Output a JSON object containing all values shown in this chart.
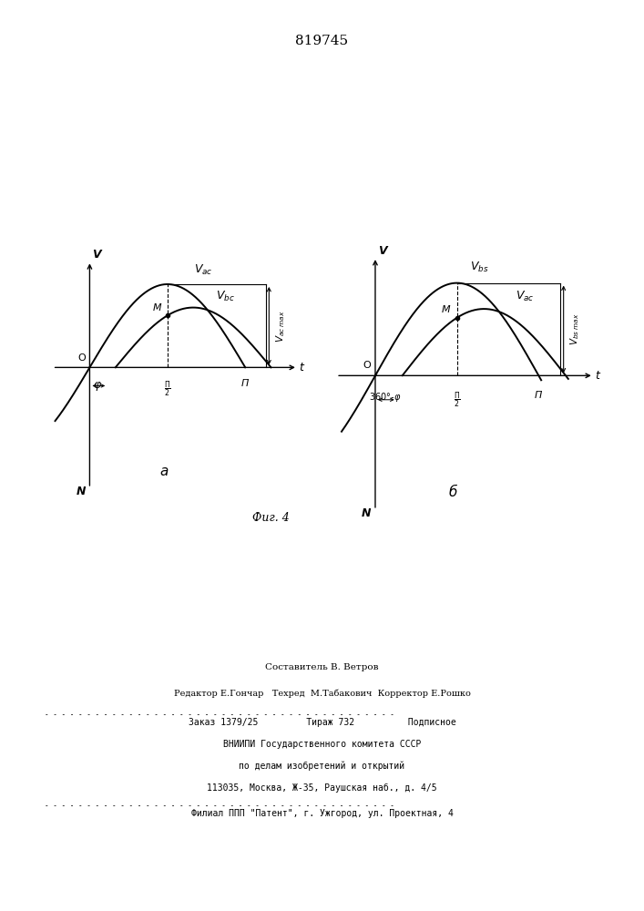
{
  "patent_number": "819745",
  "fig_label": "Фиг. 4",
  "bottom_text_line1": "Составитель В. Ветров",
  "bottom_text_line2": "Редактор Е.Гончар   Техред  М.Табакович  Корректор Е.Рошко",
  "bottom_text_line3": "Заказ 1379/25         Тираж 732          Подписное",
  "bottom_text_line4": "ВНИИПИ Государственного комитета СССР",
  "bottom_text_line5": "по делам изобретений и открытий",
  "bottom_text_line6": "113035, Москва, Ж-35, Раушская наб., д. 4/5",
  "bottom_text_line7": "Филиал ППП \"Патент\", г. Ужгород, ул. Проектная, 4",
  "bg_color": "#ffffff"
}
